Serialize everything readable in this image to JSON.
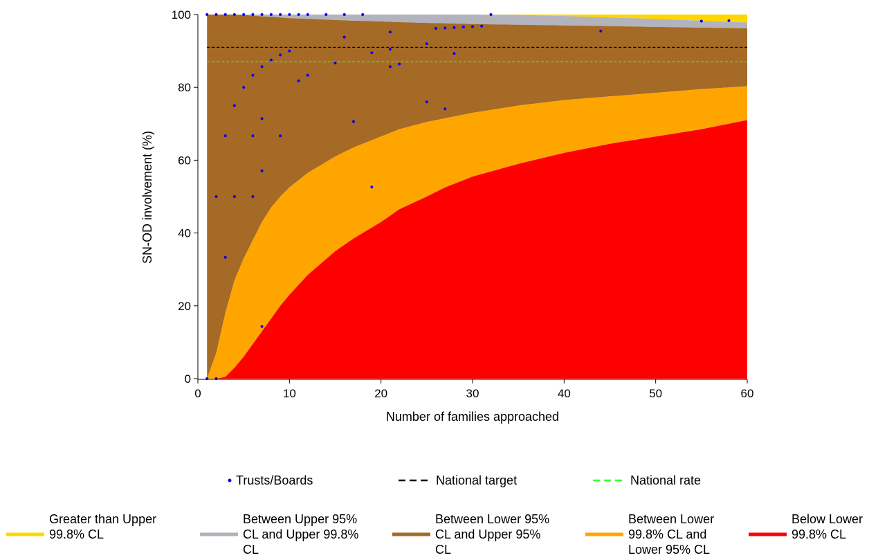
{
  "chart_data": {
    "type": "scatter",
    "title": "",
    "xlabel": "Number of families approached",
    "ylabel": "SN-OD involvement (%)",
    "xlim": [
      0,
      60
    ],
    "ylim": [
      0,
      100
    ],
    "x_ticks": [
      0,
      10,
      20,
      30,
      40,
      50,
      60
    ],
    "y_ticks": [
      0,
      20,
      40,
      60,
      80,
      100
    ],
    "grid": false,
    "legend_position": "bottom",
    "reference_lines": [
      {
        "name": "National target",
        "y": 91,
        "color": "#000000",
        "style": "dashed"
      },
      {
        "name": "National rate",
        "y": 87,
        "color": "#33ff33",
        "style": "dashed"
      }
    ],
    "control_limits_x": [
      1,
      2,
      3,
      4,
      5,
      6,
      7,
      8,
      9,
      10,
      12,
      15,
      17,
      20,
      22,
      25,
      27,
      30,
      35,
      40,
      45,
      50,
      55,
      60
    ],
    "control_limits": {
      "upper_99_8": [
        100,
        100,
        100,
        100,
        100,
        100,
        100,
        100,
        100,
        100,
        100,
        100,
        100,
        100,
        100,
        100,
        100,
        100,
        99.9,
        99.6,
        99.2,
        98.8,
        98.3,
        97.8
      ],
      "upper_95": [
        100,
        100,
        100,
        100,
        99.9,
        99.7,
        99.5,
        99.4,
        99.2,
        99.0,
        98.8,
        98.5,
        98.3,
        98.1,
        97.9,
        97.7,
        97.6,
        97.4,
        97.2,
        97.0,
        96.8,
        96.6,
        96.4,
        96.2
      ],
      "lower_95": [
        0,
        7,
        18,
        27,
        33,
        38,
        43,
        47,
        50,
        52.5,
        56.5,
        61,
        63.5,
        66.5,
        68.5,
        70.5,
        71.5,
        73,
        75,
        76.5,
        77.5,
        78.5,
        79.5,
        80.3
      ],
      "lower_99_8": [
        0,
        0,
        0.5,
        3,
        6,
        9.5,
        13,
        16.5,
        20,
        23,
        28.5,
        35,
        38.5,
        43,
        46.5,
        50,
        52.5,
        55.5,
        59,
        62,
        64.5,
        66.5,
        68.5,
        71
      ]
    },
    "series": [
      {
        "name": "Trusts/Boards",
        "color": "#0000ff",
        "points": [
          [
            1,
            0
          ],
          [
            1,
            100
          ],
          [
            2,
            0
          ],
          [
            2,
            50
          ],
          [
            2,
            100
          ],
          [
            3,
            33.3
          ],
          [
            3,
            66.7
          ],
          [
            3,
            100
          ],
          [
            4,
            50
          ],
          [
            4,
            75
          ],
          [
            4,
            100
          ],
          [
            5,
            80
          ],
          [
            5,
            100
          ],
          [
            6,
            50
          ],
          [
            6,
            66.7
          ],
          [
            6,
            83.3
          ],
          [
            6,
            100
          ],
          [
            7,
            14.3
          ],
          [
            7,
            57.1
          ],
          [
            7,
            71.4
          ],
          [
            7,
            85.7
          ],
          [
            7,
            100
          ],
          [
            8,
            87.5
          ],
          [
            8,
            100
          ],
          [
            9,
            66.7
          ],
          [
            9,
            88.9
          ],
          [
            9,
            100
          ],
          [
            10,
            90
          ],
          [
            10,
            100
          ],
          [
            11,
            81.8
          ],
          [
            11,
            100
          ],
          [
            12,
            83.3
          ],
          [
            12,
            100
          ],
          [
            14,
            100
          ],
          [
            15,
            86.7
          ],
          [
            16,
            93.8
          ],
          [
            16,
            100
          ],
          [
            17,
            70.6
          ],
          [
            18,
            100
          ],
          [
            19,
            52.6
          ],
          [
            19,
            89.5
          ],
          [
            21,
            85.7
          ],
          [
            21,
            90.5
          ],
          [
            21,
            95.2
          ],
          [
            22,
            86.4
          ],
          [
            25,
            76
          ],
          [
            25,
            92
          ],
          [
            26,
            96.2
          ],
          [
            27,
            74.1
          ],
          [
            27,
            96.3
          ],
          [
            28,
            89.3
          ],
          [
            28,
            96.4
          ],
          [
            29,
            96.6
          ],
          [
            30,
            96.7
          ],
          [
            31,
            96.8
          ],
          [
            32,
            100
          ],
          [
            44,
            95.5
          ],
          [
            55,
            98.2
          ],
          [
            58,
            98.3
          ]
        ]
      }
    ],
    "bands": [
      {
        "name": "Greater than Upper 99.8% CL",
        "color": "#ffd700"
      },
      {
        "name": "Between Upper 95% CL and Upper 99.8% CL",
        "color": "#b3b3bd"
      },
      {
        "name": "Between Lower 95% CL and Upper 95% CL",
        "color": "#a56a26"
      },
      {
        "name": "Between Lower 99.8% CL and Lower 95% CL",
        "color": "#ffa500"
      },
      {
        "name": "Below Lower 99.8% CL",
        "color": "#ff0000"
      }
    ]
  },
  "legend": {
    "row1": [
      {
        "label": "Trusts/Boards",
        "kind": "dot",
        "color": "#0000ff"
      },
      {
        "label": "National target",
        "kind": "dash",
        "color": "#000000"
      },
      {
        "label": "National rate",
        "kind": "dash",
        "color": "#33ff33"
      }
    ],
    "row2": [
      {
        "lines": [
          "Greater than Upper",
          "99.8% CL"
        ],
        "color": "#ffd700"
      },
      {
        "lines": [
          "Between Upper 95%",
          "CL and Upper 99.8%",
          "CL"
        ],
        "color": "#b3b3bd"
      },
      {
        "lines": [
          "Between Lower 95%",
          "CL and Upper 95%",
          "CL"
        ],
        "color": "#a56a26"
      },
      {
        "lines": [
          "Between Lower",
          "99.8% CL and",
          "Lower 95% CL"
        ],
        "color": "#ffa500"
      },
      {
        "lines": [
          "Below Lower",
          "99.8% CL"
        ],
        "color": "#ff0000"
      }
    ]
  }
}
